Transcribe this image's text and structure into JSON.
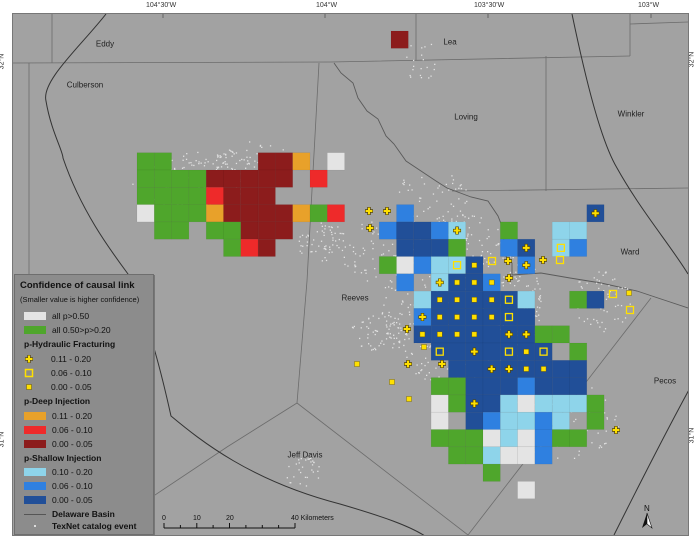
{
  "axes": {
    "longitude_labels": [
      "104°30'W",
      "104°W",
      "103°30'W",
      "103°W"
    ],
    "latitude_labels": [
      "32°N",
      "31°N"
    ]
  },
  "counties": [
    "Eddy",
    "Lea",
    "Culberson",
    "Loving",
    "Winkler",
    "Ward",
    "Reeves",
    "Pecos",
    "Jeff Davis"
  ],
  "colors": {
    "map_bg": "#a2a2a2",
    "white": "#e4e4e4",
    "green": "#4fa62c",
    "deep_low": "#e8a12a",
    "deep_mid": "#ee2a2a",
    "deep_high": "#8c1c1c",
    "shallow_low": "#8ed4ea",
    "shallow_mid": "#2f80e0",
    "shallow_high": "#214f98",
    "hf_marker": "#ffe000"
  },
  "legend": {
    "title": "Confidence of causal link",
    "subtitle": "(Smaller value is higher confidence)",
    "all_items": [
      {
        "label": "all p>0.50",
        "color": "#e4e4e4"
      },
      {
        "label": "all 0.50>p>0.20",
        "color": "#4fa62c"
      }
    ],
    "hf_heading": "p-Hydraulic Fracturing",
    "hf_items": [
      {
        "label": "0.11 - 0.20",
        "symbol": "plus-icon"
      },
      {
        "label": "0.06 - 0.10",
        "symbol": "open-square-icon"
      },
      {
        "label": "0.00 - 0.05",
        "symbol": "filled-square-icon"
      }
    ],
    "deep_heading": "p-Deep Injection",
    "deep_items": [
      {
        "label": "0.11 - 0.20",
        "color": "#e8a12a"
      },
      {
        "label": "0.06 - 0.10",
        "color": "#ee2a2a"
      },
      {
        "label": "0.00 - 0.05",
        "color": "#8c1c1c"
      }
    ],
    "shallow_heading": "p-Shallow Injection",
    "shallow_items": [
      {
        "label": "0.10 - 0.20",
        "color": "#8ed4ea"
      },
      {
        "label": "0.06 - 0.10",
        "color": "#2f80e0"
      },
      {
        "label": "0.00 - 0.05",
        "color": "#214f98"
      }
    ],
    "basin_label": "Delaware Basin",
    "event_label": "TexNet catalog event"
  },
  "scale_bar": {
    "labels": [
      "0",
      "10",
      "20",
      "40 Kilometers"
    ]
  },
  "north_arrow": {
    "label": "N"
  }
}
